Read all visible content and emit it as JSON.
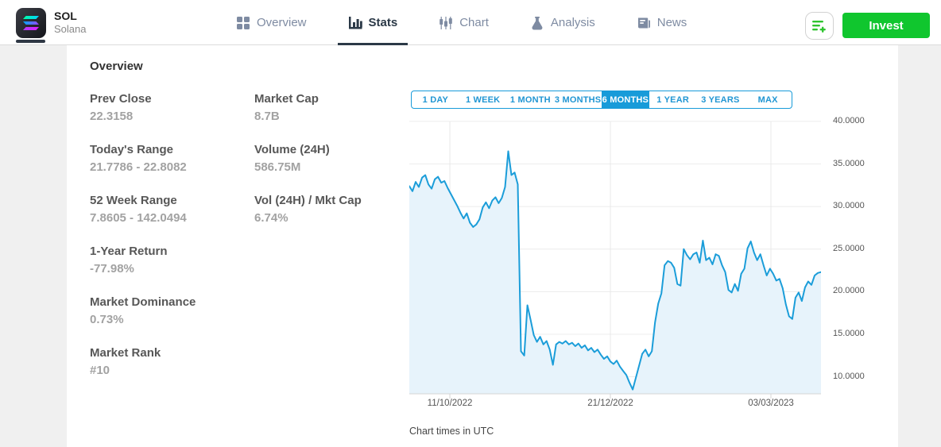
{
  "header": {
    "symbol": "SOL",
    "name": "Solana",
    "tabs": [
      {
        "label": "Overview",
        "active": false
      },
      {
        "label": "Stats",
        "active": true
      },
      {
        "label": "Chart",
        "active": false
      },
      {
        "label": "Analysis",
        "active": false
      },
      {
        "label": "News",
        "active": false
      }
    ],
    "invest_label": "Invest"
  },
  "overview": {
    "title": "Overview",
    "stats_left": [
      {
        "label": "Prev Close",
        "value": "22.3158"
      },
      {
        "label": "Today's Range",
        "value": "21.7786 - 22.8082"
      },
      {
        "label": "52 Week Range",
        "value": "7.8605 - 142.0494"
      },
      {
        "label": "1-Year Return",
        "value": "-77.98%"
      },
      {
        "label": "Market Dominance",
        "value": "0.73%"
      },
      {
        "label": "Market Rank",
        "value": "#10"
      }
    ],
    "stats_right": [
      {
        "label": "Market Cap",
        "value": "8.7B"
      },
      {
        "label": "Volume (24H)",
        "value": "586.75M"
      },
      {
        "label": "Vol (24H) / Mkt Cap",
        "value": "6.74%"
      }
    ]
  },
  "chart": {
    "timeframes": [
      "1 DAY",
      "1 WEEK",
      "1 MONTH",
      "3 MONTHS",
      "6 MONTHS",
      "1 YEAR",
      "3 YEARS",
      "MAX"
    ],
    "active_timeframe": "6 MONTHS",
    "footnote": "Chart times in UTC"
  },
  "chart_data": {
    "type": "line",
    "title": "SOL / Solana price, 6 months",
    "ylim": [
      8.0,
      41.3
    ],
    "grid": true,
    "line_color": "#1b9dd9",
    "fill_color": "#e7f3fb",
    "axis_color": "#d4d4d4",
    "grid_color": "#ececec",
    "y_ticks": [
      {
        "value": 40,
        "label": "40.0000"
      },
      {
        "value": 35,
        "label": "35.0000"
      },
      {
        "value": 30,
        "label": "30.0000"
      },
      {
        "value": 25,
        "label": "25.0000"
      },
      {
        "value": 20,
        "label": "20.0000"
      },
      {
        "value": 15,
        "label": "15.0000"
      },
      {
        "value": 10,
        "label": "10.0000"
      }
    ],
    "x_ticks": [
      {
        "label": "11/10/2022",
        "pos": 0.0985
      },
      {
        "label": "21/12/2022",
        "pos": 0.4884
      },
      {
        "label": "03/03/2023",
        "pos": 0.8784
      }
    ],
    "values": [
      32.4,
      31.8,
      32.9,
      32.3,
      33.4,
      33.7,
      32.6,
      32.1,
      33.2,
      33.5,
      32.8,
      33.0,
      32.2,
      31.5,
      30.8,
      30.1,
      29.3,
      28.6,
      29.2,
      28.1,
      27.6,
      27.9,
      28.5,
      29.9,
      30.5,
      29.8,
      30.7,
      31.1,
      30.4,
      31.0,
      32.3,
      36.5,
      33.7,
      34.0,
      32.6,
      13.0,
      12.5,
      18.4,
      16.7,
      14.9,
      14.1,
      14.7,
      13.8,
      14.2,
      13.2,
      11.4,
      13.8,
      14.1,
      13.9,
      14.2,
      13.8,
      14.0,
      13.6,
      13.9,
      13.4,
      13.7,
      13.1,
      13.4,
      12.9,
      13.2,
      12.6,
      12.1,
      12.4,
      11.8,
      11.5,
      11.9,
      11.2,
      10.7,
      10.2,
      9.3,
      8.5,
      9.9,
      11.3,
      12.7,
      13.2,
      12.4,
      13.0,
      16.4,
      18.6,
      19.8,
      23.1,
      23.6,
      23.4,
      22.8,
      20.9,
      20.7,
      25.0,
      24.3,
      23.8,
      24.4,
      24.6,
      23.4,
      26.0,
      23.7,
      24.0,
      23.2,
      24.4,
      24.2,
      23.1,
      22.3,
      20.2,
      19.9,
      20.9,
      20.1,
      22.1,
      22.7,
      25.1,
      25.9,
      24.6,
      23.7,
      24.4,
      23.1,
      21.9,
      22.7,
      22.1,
      21.3,
      21.5,
      20.4,
      18.5,
      17.1,
      16.8,
      19.3,
      19.9,
      18.9,
      20.5,
      21.2,
      20.8,
      21.9,
      22.2,
      22.3
    ]
  }
}
